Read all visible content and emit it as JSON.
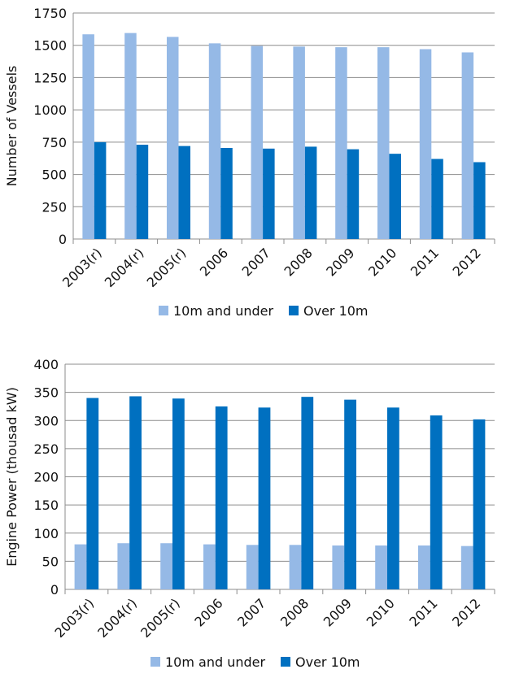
{
  "chart_data": [
    {
      "type": "bar",
      "ylabel": "Number of Vessels",
      "ylim": [
        0,
        1750
      ],
      "yticks": [
        0,
        250,
        500,
        750,
        1000,
        1250,
        1500,
        1750
      ],
      "categories": [
        "2003(r)",
        "2004(r)",
        "2005(r)",
        "2006",
        "2007",
        "2008",
        "2009",
        "2010",
        "2011",
        "2012"
      ],
      "series": [
        {
          "name": "10m and under",
          "color": "#95B9E6",
          "values": [
            1585,
            1595,
            1565,
            1515,
            1495,
            1490,
            1485,
            1485,
            1470,
            1445
          ]
        },
        {
          "name": "Over 10m",
          "color": "#0070C0",
          "values": [
            750,
            730,
            720,
            705,
            700,
            715,
            695,
            660,
            620,
            595
          ]
        }
      ],
      "grid": true,
      "legend": "bottom"
    },
    {
      "type": "bar",
      "ylabel": "Engine Power (thousad kW)",
      "ylim": [
        0,
        400
      ],
      "yticks": [
        0,
        50,
        100,
        150,
        200,
        250,
        300,
        350,
        400
      ],
      "categories": [
        "2003(r)",
        "2004(r)",
        "2005(r)",
        "2006",
        "2007",
        "2008",
        "2009",
        "2010",
        "2011",
        "2012"
      ],
      "series": [
        {
          "name": "10m and under",
          "color": "#95B9E6",
          "values": [
            80,
            82,
            82,
            80,
            79,
            79,
            78,
            78,
            78,
            77
          ]
        },
        {
          "name": "Over 10m",
          "color": "#0070C0",
          "values": [
            340,
            343,
            339,
            325,
            323,
            342,
            337,
            323,
            309,
            302
          ]
        }
      ],
      "grid": true,
      "legend": "bottom"
    }
  ]
}
